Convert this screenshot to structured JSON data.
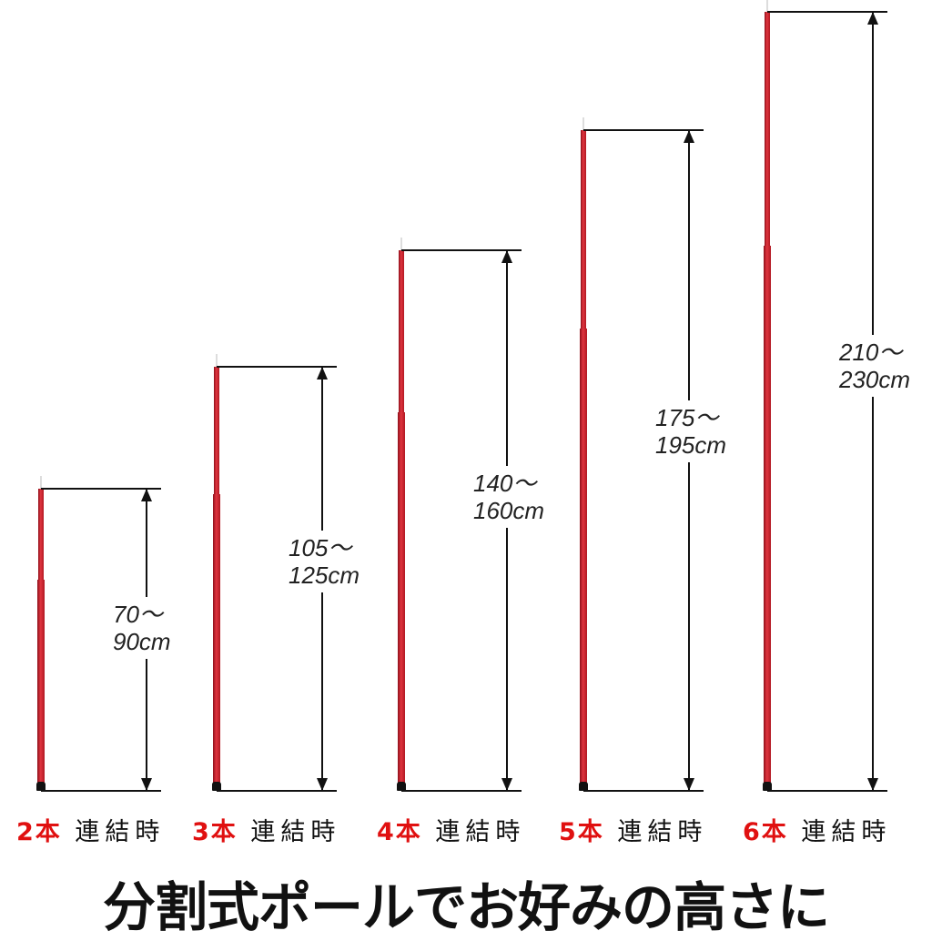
{
  "poles": [
    {
      "count_label": "2本",
      "suffix": "連結時",
      "range_line1": "70～",
      "range_line2": "90cm",
      "min_cm": 70,
      "max_cm": 90
    },
    {
      "count_label": "3本",
      "suffix": "連結時",
      "range_line1": "105～",
      "range_line2": "125cm",
      "min_cm": 105,
      "max_cm": 125
    },
    {
      "count_label": "4本",
      "suffix": "連結時",
      "range_line1": "140～",
      "range_line2": "160cm",
      "min_cm": 140,
      "max_cm": 160
    },
    {
      "count_label": "5本",
      "suffix": "連結時",
      "range_line1": "175～",
      "range_line2": "195cm",
      "min_cm": 175,
      "max_cm": 195
    },
    {
      "count_label": "6本",
      "suffix": "連結時",
      "range_line1": "210～",
      "range_line2": "230cm",
      "min_cm": 210,
      "max_cm": 230
    }
  ],
  "title": "分割式ポールでお好みの高さに",
  "colors": {
    "pole": "#d02030",
    "count": "#e01010",
    "text": "#111111"
  }
}
